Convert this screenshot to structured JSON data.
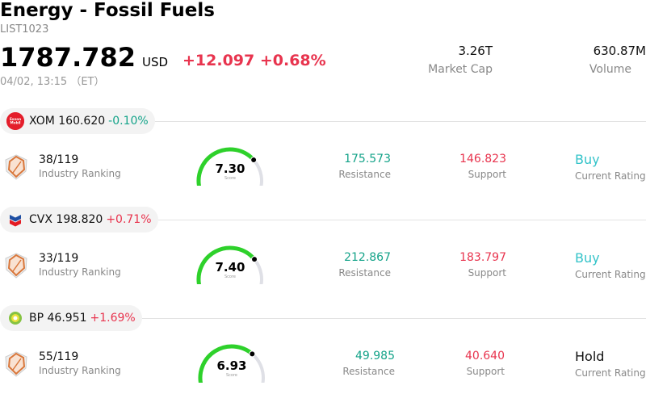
{
  "header": {
    "title": "Energy - Fossil Fuels",
    "code": "LIST1023",
    "price": "1787.782",
    "currency": "USD",
    "change": "+12.097 +0.68%",
    "timestamp": "04/02, 13:15 （ET）",
    "market_cap_value": "3.26T",
    "market_cap_label": "Market Cap",
    "volume_value": "630.87M",
    "volume_label": "Volume"
  },
  "colors": {
    "up": "#e8344e",
    "down": "#14a389",
    "buy": "#33c3c9",
    "gauge_fill": "#2ed12b",
    "gauge_track": "#dfe0e6"
  },
  "stocks": [
    {
      "ticker": "XOM",
      "price": "160.620",
      "change": "-0.10%",
      "direction": "down",
      "logo_icon": "exxon-mobil-logo",
      "logo_text": "Exxon Mobil",
      "rank_value": "38/119",
      "rank_label": "Industry Ranking",
      "score": "7.30",
      "score_fraction": 0.73,
      "score_caption": "Score",
      "resistance": "175.573",
      "resistance_label": "Resistance",
      "support": "146.823",
      "support_label": "Support",
      "rating": "Buy",
      "rating_label": "Current Rating"
    },
    {
      "ticker": "CVX",
      "price": "198.820",
      "change": "+0.71%",
      "direction": "up",
      "logo_icon": "chevron-logo",
      "rank_value": "33/119",
      "rank_label": "Industry Ranking",
      "score": "7.40",
      "score_fraction": 0.74,
      "score_caption": "Score",
      "resistance": "212.867",
      "resistance_label": "Resistance",
      "support": "183.797",
      "support_label": "Support",
      "rating": "Buy",
      "rating_label": "Current Rating"
    },
    {
      "ticker": "BP",
      "price": "46.951",
      "change": "+1.69%",
      "direction": "up",
      "logo_icon": "bp-logo",
      "rank_value": "55/119",
      "rank_label": "Industry Ranking",
      "score": "6.93",
      "score_fraction": 0.693,
      "score_caption": "Score",
      "resistance": "49.985",
      "resistance_label": "Resistance",
      "support": "40.640",
      "support_label": "Support",
      "rating": "Hold",
      "rating_label": "Current Rating"
    }
  ]
}
